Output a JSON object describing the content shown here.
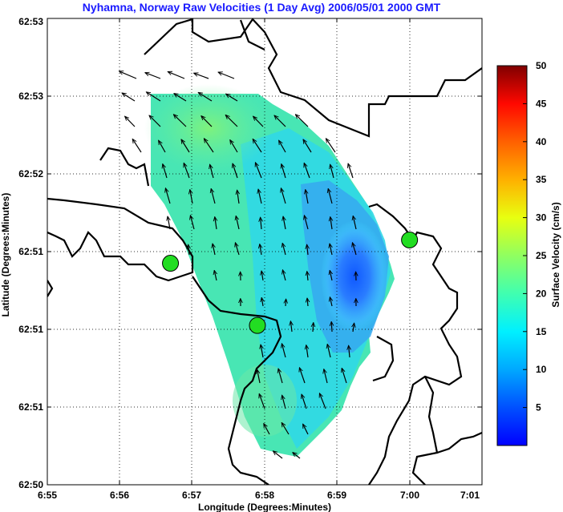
{
  "chart_data": {
    "type": "vector-field",
    "title": "Nyhamna, Norway Raw Velocities (1 Day Avg) 2006/05/01 2000 GMT",
    "xlabel": "Longitude (Degrees:Minutes)",
    "ylabel": "Latitude (Degrees:Minutes)",
    "x_ticks": [
      "6:55",
      "6:56",
      "6:57",
      "6:58",
      "6:59",
      "7:00",
      "7:01"
    ],
    "y_ticks": [
      "62:53",
      "62:53",
      "62:52",
      "62:51",
      "62:51",
      "62:51",
      "62:50"
    ],
    "grid": true,
    "colorbar": {
      "label": "Surface Velocity (cm/s)",
      "ticks": [
        5,
        10,
        15,
        20,
        25,
        30,
        35,
        40,
        45,
        50
      ],
      "range": [
        0,
        50
      ],
      "colormap": "jet"
    },
    "stations": [
      {
        "lon_min": 56.7,
        "lat_idx": 2.85,
        "color": "#22dd22"
      },
      {
        "lon_min": 57.9,
        "lat_idx": 2.05,
        "color": "#22dd22"
      },
      {
        "lon_min": 60.0,
        "lat_idx": 3.15,
        "color": "#22dd22"
      }
    ],
    "speed_field_cm_s": {
      "west_region": 15,
      "north_region": 18,
      "central_channel": 9,
      "east_core": 3,
      "south_tip": 13
    }
  }
}
